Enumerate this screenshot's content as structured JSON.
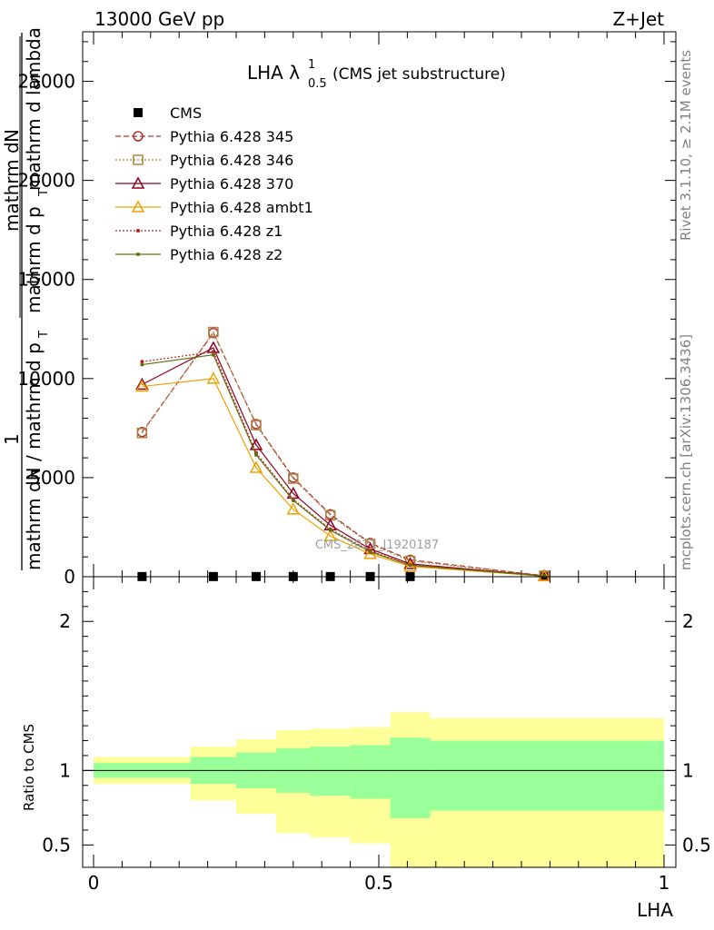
{
  "header": {
    "left": "13000 GeV pp",
    "right": "Z+Jet"
  },
  "side_labels": {
    "rivet": "Rivet 3.1.10, ≥ 2.1M events",
    "mcplots": "mcplots.cern.ch [arXiv:1306.3436]"
  },
  "watermark": "CMS_2021_I1920187",
  "chart_data": [
    {
      "type": "line",
      "panel": "main",
      "title": "LHA λ",
      "title_sup": "1",
      "title_sub": "0.5",
      "title_suffix": "(CMS jet substructure)",
      "ylabel_num_1": "mathrm d",
      "ylabel_num_2": "N",
      "ylabel_den": "mathrm d p",
      "ylabel_den_sub": "T",
      "ylabel_den_suffix": "mathrm d lambda",
      "ylabel_outer_num": "1",
      "ylabel_outer_den": "mathrm dN / mathrm d p",
      "ylabel_outer_den_sub": "T",
      "xlim": [
        0,
        1
      ],
      "ylim": [
        0,
        27500
      ],
      "yticks": [
        0,
        5000,
        10000,
        15000,
        20000,
        25000
      ],
      "ytick_labels": [
        "0",
        "5000",
        "10000",
        "15000",
        "20000",
        "25000"
      ],
      "legend_position": "top-left",
      "x": [
        0.085,
        0.21,
        0.285,
        0.35,
        0.415,
        0.485,
        0.555,
        0.79
      ],
      "series": [
        {
          "name": "CMS",
          "color": "#000000",
          "marker": "square",
          "dash": "none",
          "values": [
            8,
            8,
            8,
            8,
            8,
            8,
            8,
            4
          ]
        },
        {
          "name": "Pythia 6.428 345",
          "color": "#b03030",
          "marker": "circle",
          "dash": "6,3",
          "values": [
            7300,
            12300,
            7700,
            5000,
            3150,
            1700,
            850,
            50
          ]
        },
        {
          "name": "Pythia 6.428 346",
          "color": "#b08040",
          "marker": "square-open",
          "dash": "2,2",
          "values": [
            7250,
            12350,
            7650,
            4950,
            3100,
            1650,
            800,
            50
          ]
        },
        {
          "name": "Pythia 6.428 370",
          "color": "#900020",
          "marker": "triangle",
          "dash": "none",
          "values": [
            9700,
            11550,
            6650,
            4200,
            2600,
            1400,
            650,
            40
          ]
        },
        {
          "name": "Pythia 6.428 ambt1",
          "color": "#f0a000",
          "marker": "triangle",
          "dash": "none",
          "values": [
            9600,
            10000,
            5500,
            3400,
            2050,
            1150,
            520,
            30
          ]
        },
        {
          "name": "Pythia 6.428 z1",
          "color": "#c02020",
          "marker": "dot",
          "dash": "2,2",
          "values": [
            10850,
            11350,
            6250,
            3900,
            2400,
            1300,
            600,
            35
          ]
        },
        {
          "name": "Pythia 6.428 z2",
          "color": "#607010",
          "marker": "dot",
          "dash": "none",
          "values": [
            10700,
            11200,
            6150,
            3850,
            2350,
            1250,
            580,
            35
          ]
        }
      ]
    },
    {
      "type": "area",
      "panel": "ratio",
      "ylabel": "Ratio to CMS",
      "xlabel": "LHA",
      "xlim": [
        0,
        1
      ],
      "ylim": [
        0.35,
        2.3
      ],
      "xticks": [
        0,
        0.5,
        1
      ],
      "xtick_labels": [
        "0",
        "0.5",
        "1"
      ],
      "yticks": [
        0.5,
        1,
        2
      ],
      "ytick_labels": [
        "0.5",
        "1",
        "2"
      ],
      "bin_edges": [
        0.0,
        0.17,
        0.25,
        0.32,
        0.38,
        0.45,
        0.52,
        0.59,
        1.0
      ],
      "band_inner": {
        "color": "#99ff99",
        "low": [
          0.95,
          0.91,
          0.88,
          0.85,
          0.83,
          0.81,
          0.68,
          0.73
        ],
        "high": [
          1.05,
          1.09,
          1.12,
          1.15,
          1.16,
          1.17,
          1.22,
          1.2
        ]
      },
      "band_outer": {
        "color": "#ffff99",
        "low": [
          0.91,
          0.8,
          0.71,
          0.58,
          0.55,
          0.51,
          0.35,
          0.35
        ],
        "high": [
          1.09,
          1.16,
          1.21,
          1.27,
          1.28,
          1.29,
          1.39,
          1.35
        ]
      },
      "reference_line": 1
    }
  ]
}
